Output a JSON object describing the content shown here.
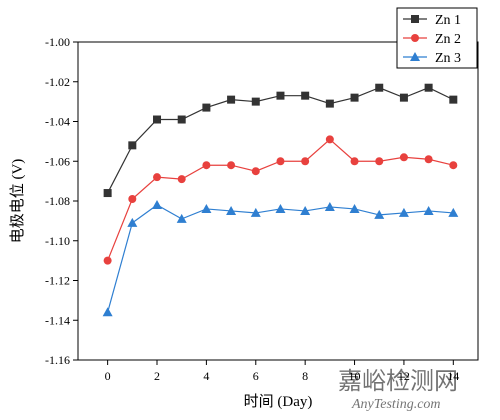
{
  "chart_data": {
    "type": "line",
    "xlabel": "时间 (Day)",
    "ylabel": "电极电位 (V)",
    "xlim": [
      -1.2,
      15
    ],
    "ylim": [
      -1.16,
      -1.0
    ],
    "xticks": [
      0,
      2,
      4,
      6,
      8,
      10,
      12,
      14
    ],
    "yticks": [
      -1.16,
      -1.14,
      -1.12,
      -1.1,
      -1.08,
      -1.06,
      -1.04,
      -1.02,
      -1.0
    ],
    "xtick_labels": [
      "0",
      "2",
      "4",
      "6",
      "8",
      "10",
      "12",
      "14"
    ],
    "ytick_labels": [
      "-1.16",
      "-1.14",
      "-1.12",
      "-1.10",
      "-1.08",
      "-1.06",
      "-1.04",
      "-1.02",
      "-1.00"
    ],
    "grid": false,
    "legend_position": "top-right",
    "x": [
      0,
      1,
      2,
      3,
      4,
      5,
      6,
      7,
      8,
      9,
      10,
      11,
      12,
      13,
      14
    ],
    "series": [
      {
        "name": "Zn 1",
        "color": "#333333",
        "marker": "square",
        "values": [
          -1.076,
          -1.052,
          -1.039,
          -1.039,
          -1.033,
          -1.029,
          -1.03,
          -1.027,
          -1.027,
          -1.031,
          -1.028,
          -1.023,
          -1.028,
          -1.023,
          -1.029
        ]
      },
      {
        "name": "Zn 2",
        "color": "#e8413e",
        "marker": "circle",
        "values": [
          -1.11,
          -1.079,
          -1.068,
          -1.069,
          -1.062,
          -1.062,
          -1.065,
          -1.06,
          -1.06,
          -1.049,
          -1.06,
          -1.06,
          -1.058,
          -1.059,
          -1.062
        ]
      },
      {
        "name": "Zn 3",
        "color": "#2f7fd1",
        "marker": "triangle",
        "values": [
          -1.136,
          -1.091,
          -1.082,
          -1.089,
          -1.084,
          -1.085,
          -1.086,
          -1.084,
          -1.085,
          -1.083,
          -1.084,
          -1.087,
          -1.086,
          -1.085,
          -1.086
        ]
      }
    ]
  },
  "watermark": {
    "main": "嘉峪检测网",
    "sub": "AnyTesting.com"
  }
}
